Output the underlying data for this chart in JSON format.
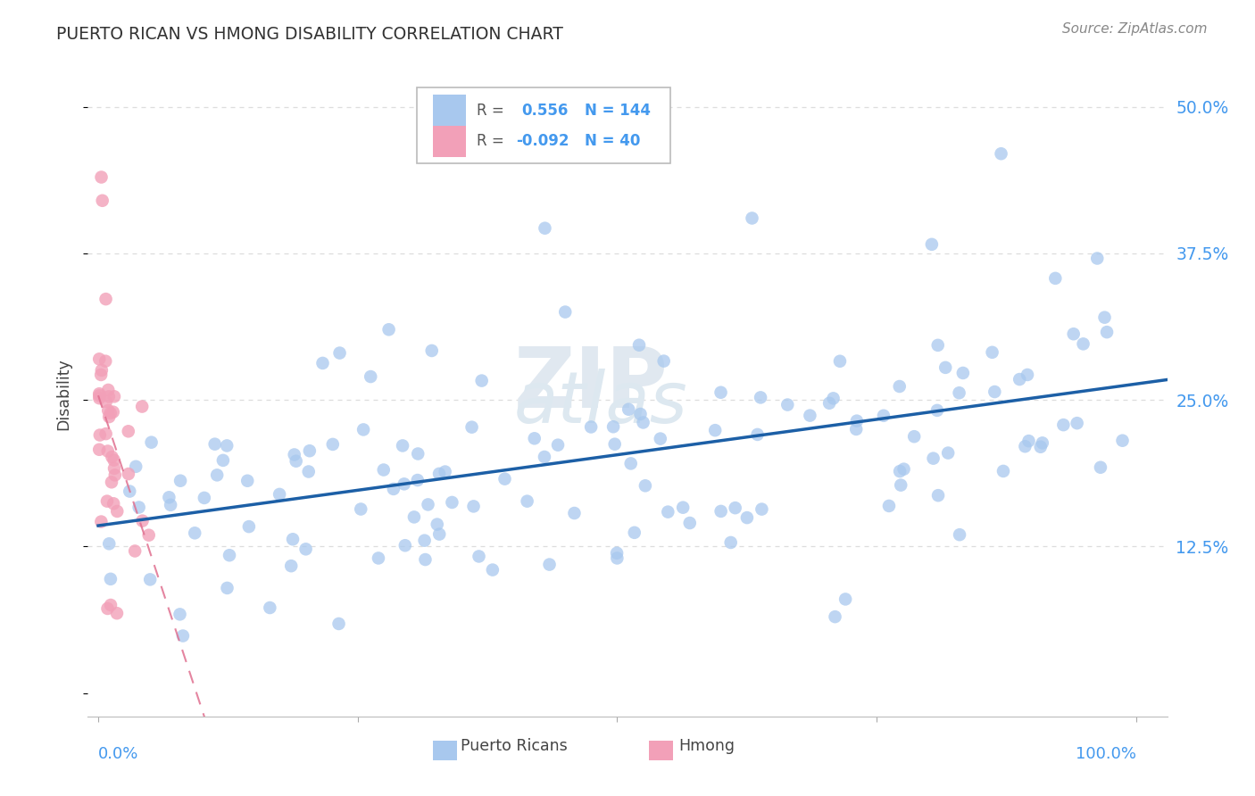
{
  "title": "PUERTO RICAN VS HMONG DISABILITY CORRELATION CHART",
  "source": "Source: ZipAtlas.com",
  "ylabel": "Disability",
  "R_blue": 0.556,
  "N_blue": 144,
  "R_pink": -0.092,
  "N_pink": 40,
  "blue_color": "#A8C8EE",
  "blue_line_color": "#1C5FA6",
  "pink_color": "#F2A0B8",
  "pink_line_color": "#E07090",
  "background_color": "#FFFFFF",
  "watermark_zip": "ZIP",
  "watermark_atlas": "atlas",
  "tick_color": "#4499EE",
  "grid_color": "#DDDDDD",
  "yticks": [
    0.0,
    0.125,
    0.25,
    0.375,
    0.5
  ],
  "ytick_labels": [
    "",
    "12.5%",
    "25.0%",
    "37.5%",
    "50.0%"
  ],
  "legend_label1": "Puerto Ricans",
  "legend_label2": "Hmong",
  "ymin": -0.02,
  "ymax": 0.53,
  "xmin": -0.01,
  "xmax": 1.03
}
